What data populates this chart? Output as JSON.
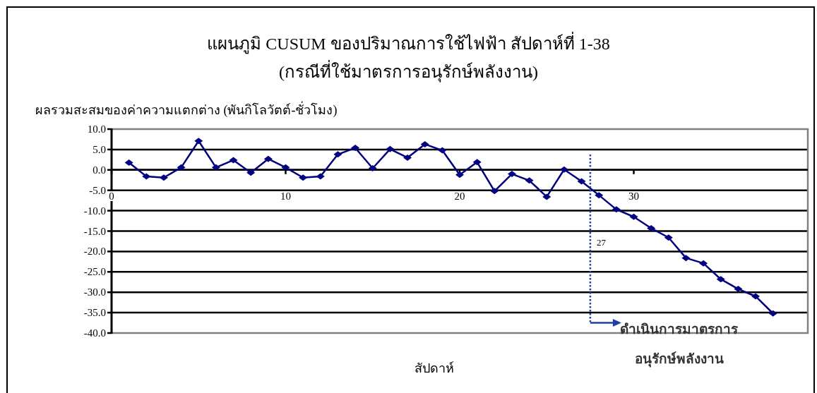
{
  "chart_data": {
    "type": "line",
    "title": "แผนภูมิ CUSUM ของปริมาณการใช้ไฟฟ้า สัปดาห์ที่ 1-38",
    "subtitle": "(กรณีที่ใช้มาตรการอนุรักษ์พลังงาน)",
    "ylabel": "ผลรวมสะสมของค่าความแตกต่าง (พันกิโลวัตต์-ชั่วโมง)",
    "xlabel": "สัปดาห์",
    "x": [
      1,
      2,
      3,
      4,
      5,
      6,
      7,
      8,
      9,
      10,
      11,
      12,
      13,
      14,
      15,
      16,
      17,
      18,
      19,
      20,
      21,
      22,
      23,
      24,
      25,
      26,
      27,
      28,
      29,
      30,
      31,
      32,
      33,
      34,
      35,
      36,
      37,
      38
    ],
    "series": [
      {
        "color": "#000080",
        "values": [
          1.8,
          -1.6,
          -1.9,
          0.6,
          7.1,
          0.6,
          2.4,
          -0.7,
          2.7,
          0.6,
          -1.9,
          -1.6,
          3.8,
          5.4,
          0.4,
          5.1,
          3.0,
          6.3,
          4.8,
          -1.2,
          1.9,
          -5.2,
          -1.0,
          -2.6,
          -6.6,
          0.1,
          -2.8,
          -6.2,
          -9.7,
          -11.5,
          -14.3,
          -16.6,
          -21.6,
          -22.9,
          -26.8,
          -29.2,
          -31.0,
          -35.2
        ]
      }
    ],
    "xlim": [
      0,
      40
    ],
    "xticks": [
      0,
      10,
      20,
      30
    ],
    "ylim": [
      -40,
      10
    ],
    "yticks": [
      {
        "value": 10,
        "label": "10.0"
      },
      {
        "value": 5,
        "label": "5.0"
      },
      {
        "value": 0,
        "label": "0.0"
      },
      {
        "value": -5,
        "label": "-5.0"
      },
      {
        "value": -10,
        "label": "-10.0"
      },
      {
        "value": -15,
        "label": "-15.0"
      },
      {
        "value": -20,
        "label": "-20.0"
      },
      {
        "value": -25,
        "label": "-25.0"
      },
      {
        "value": -30,
        "label": "-30.0"
      },
      {
        "value": -35,
        "label": "-35.0"
      },
      {
        "value": -40,
        "label": "-40.0"
      }
    ],
    "grid": "y",
    "marker": "diamond",
    "line_style": "solid",
    "ref_lines": [
      {
        "axis": "x",
        "value": 27.5,
        "label": "27",
        "color": "#1f3fa5",
        "line_style": "dotted"
      }
    ],
    "annotations": [
      {
        "text": "ดำเนินการมาตรการ\nอนุรักษ์พลังงาน",
        "x": 27.5,
        "y": -37.5
      }
    ]
  }
}
